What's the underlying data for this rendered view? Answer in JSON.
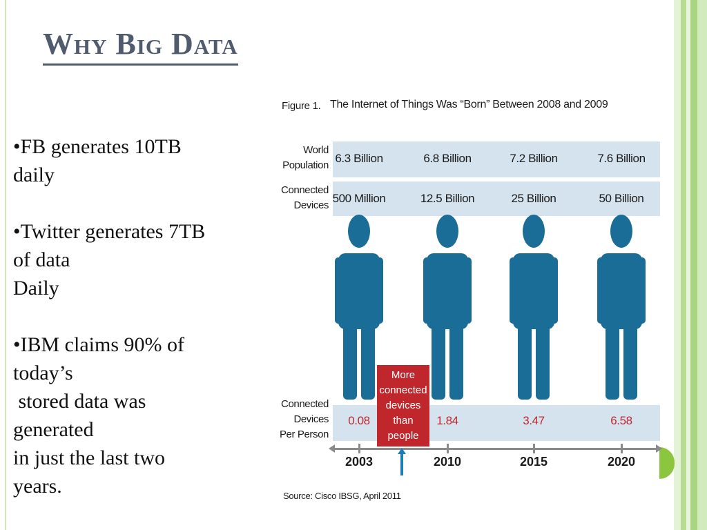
{
  "slide": {
    "title": "Why Big Data",
    "bullets": [
      {
        "lines": [
          "•FB generates 10TB",
          "daily"
        ]
      },
      {
        "lines": [
          "•Twitter generates 7TB",
          "of data",
          "Daily"
        ]
      },
      {
        "lines": [
          "•IBM claims 90% of",
          "today’s",
          " stored data was",
          "generated",
          "in just the last two",
          "years."
        ]
      }
    ]
  },
  "infographic": {
    "figure_label": "Figure 1.",
    "figure_title": "The Internet of Things Was “Born” Between 2008 and 2009",
    "row_labels": {
      "world_population": [
        "World",
        "Population"
      ],
      "connected_devices": [
        "Connected",
        "Devices"
      ],
      "per_person": [
        "Connected",
        "Devices",
        "Per Person"
      ]
    },
    "years": [
      "2003",
      "2010",
      "2015",
      "2020"
    ],
    "world_population": [
      "6.3 Billion",
      "6.8 Billion",
      "7.2 Billion",
      "7.6 Billion"
    ],
    "connected_devices": [
      "500 Million",
      "12.5 Billion",
      "25 Billion",
      "50 Billion"
    ],
    "devices_per_person": [
      "0.08",
      "1.84",
      "3.47",
      "6.58"
    ],
    "callout": "More\nconnected\ndevices\nthan\npeople",
    "source": "Source: Cisco IBSG, April 2011",
    "colors": {
      "band": "#d4e3ee",
      "person": "#1a6d96",
      "callout": "#c0272d",
      "accent_red": "#c0272d"
    }
  }
}
